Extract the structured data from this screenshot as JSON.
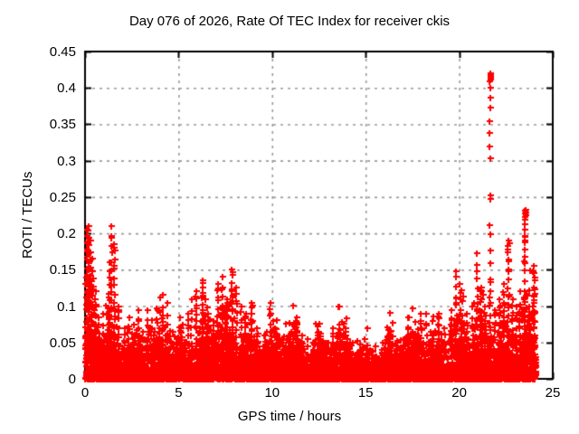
{
  "page": {
    "background": "#ffffff"
  },
  "chart_data": {
    "type": "scatter",
    "title": "Day 076 of 2026, Rate Of TEC Index for receiver ckis",
    "xlabel": "GPS time / hours",
    "ylabel": "ROTI / TECUs",
    "xlim": [
      0,
      25
    ],
    "ylim": [
      0,
      0.45
    ],
    "xticks": {
      "values": [
        0,
        5,
        10,
        15,
        20,
        25
      ],
      "labels": [
        "0",
        "5",
        "10",
        "15",
        "20",
        "25"
      ]
    },
    "yticks": {
      "values": [
        0,
        0.05,
        0.1,
        0.15,
        0.2,
        0.25,
        0.3,
        0.35,
        0.4,
        0.45
      ],
      "labels": [
        "0",
        "0.05",
        "0.1",
        "0.15",
        "0.2",
        "0.25",
        "0.3",
        "0.35",
        "0.4",
        "0.45"
      ]
    },
    "grid": {
      "show": true,
      "style": "dashed",
      "color": "#9a9a9a"
    },
    "axis_color": "#000000",
    "legend": "none",
    "series": [
      {
        "name": "ROTI",
        "marker": "plus",
        "color": "#ff0000",
        "time_span_hours": [
          0,
          24.1
        ],
        "max_value": 0.418,
        "baseline_top_by_hour": [
          0.055,
          0.05,
          0.042,
          0.042,
          0.045,
          0.042,
          0.048,
          0.052,
          0.048,
          0.042,
          0.038,
          0.042,
          0.036,
          0.042,
          0.032,
          0.03,
          0.036,
          0.036,
          0.042,
          0.045,
          0.05,
          0.052,
          0.046,
          0.052,
          0.06
        ],
        "spike_envelope": [
          [
            0.1,
            0.205
          ],
          [
            0.18,
            0.21
          ],
          [
            0.28,
            0.19
          ],
          [
            0.38,
            0.165
          ],
          [
            0.55,
            0.12
          ],
          [
            0.75,
            0.085
          ],
          [
            1.0,
            0.09
          ],
          [
            1.28,
            0.16
          ],
          [
            1.42,
            0.21
          ],
          [
            1.56,
            0.185
          ],
          [
            1.78,
            0.1
          ],
          [
            2.1,
            0.07
          ],
          [
            2.35,
            0.085
          ],
          [
            2.6,
            0.075
          ],
          [
            2.85,
            0.095
          ],
          [
            3.1,
            0.065
          ],
          [
            3.35,
            0.095
          ],
          [
            3.65,
            0.06
          ],
          [
            3.9,
            0.055
          ],
          [
            4.15,
            0.115
          ],
          [
            4.4,
            0.105
          ],
          [
            4.7,
            0.065
          ],
          [
            4.95,
            0.055
          ],
          [
            5.2,
            0.075
          ],
          [
            5.5,
            0.09
          ],
          [
            5.7,
            0.11
          ],
          [
            5.95,
            0.12
          ],
          [
            6.3,
            0.135
          ],
          [
            6.6,
            0.09
          ],
          [
            6.85,
            0.08
          ],
          [
            7.1,
            0.13
          ],
          [
            7.35,
            0.14
          ],
          [
            7.6,
            0.11
          ],
          [
            7.85,
            0.15
          ],
          [
            8.1,
            0.125
          ],
          [
            8.35,
            0.1
          ],
          [
            8.6,
            0.09
          ],
          [
            8.9,
            0.105
          ],
          [
            9.2,
            0.07
          ],
          [
            9.6,
            0.06
          ],
          [
            9.9,
            0.105
          ],
          [
            10.2,
            0.06
          ],
          [
            10.6,
            0.055
          ],
          [
            10.9,
            0.05
          ],
          [
            11.3,
            0.085
          ],
          [
            11.6,
            0.06
          ],
          [
            11.9,
            0.055
          ],
          [
            12.2,
            0.05
          ],
          [
            12.55,
            0.055
          ],
          [
            12.9,
            0.05
          ],
          [
            13.25,
            0.07
          ],
          [
            13.6,
            0.075
          ],
          [
            13.9,
            0.07
          ],
          [
            14.3,
            0.05
          ],
          [
            14.7,
            0.04
          ],
          [
            15.1,
            0.04
          ],
          [
            15.5,
            0.045
          ],
          [
            15.9,
            0.05
          ],
          [
            16.3,
            0.065
          ],
          [
            16.7,
            0.05
          ],
          [
            17.0,
            0.055
          ],
          [
            17.3,
            0.085
          ],
          [
            17.6,
            0.06
          ],
          [
            17.95,
            0.09
          ],
          [
            18.25,
            0.09
          ],
          [
            18.6,
            0.08
          ],
          [
            18.9,
            0.09
          ],
          [
            19.2,
            0.07
          ],
          [
            19.6,
            0.095
          ],
          [
            19.85,
            0.148
          ],
          [
            20.1,
            0.08
          ],
          [
            20.4,
            0.09
          ],
          [
            20.7,
            0.1
          ],
          [
            20.95,
            0.173
          ],
          [
            21.15,
            0.12
          ],
          [
            21.4,
            0.1
          ],
          [
            21.65,
            0.12
          ],
          [
            21.9,
            0.095
          ],
          [
            22.15,
            0.11
          ],
          [
            22.4,
            0.13
          ],
          [
            22.62,
            0.19
          ],
          [
            22.85,
            0.11
          ],
          [
            23.05,
            0.1
          ],
          [
            23.25,
            0.12
          ],
          [
            23.5,
            0.195
          ],
          [
            23.75,
            0.1
          ],
          [
            24.0,
            0.155
          ]
        ],
        "peak_points": [
          {
            "t": 21.65,
            "values": [
              0.418,
              0.414,
              0.409,
              0.4,
              0.386,
              0.373,
              0.354,
              0.338,
              0.319,
              0.303,
              0.252,
              0.247,
              0.211,
              0.199,
              0.176,
              0.159,
              0.137,
              0.133
            ]
          },
          {
            "t": 23.5,
            "values": [
              0.231,
              0.227,
              0.223,
              0.219,
              0.213,
              0.205,
              0.196
            ]
          }
        ]
      }
    ]
  }
}
